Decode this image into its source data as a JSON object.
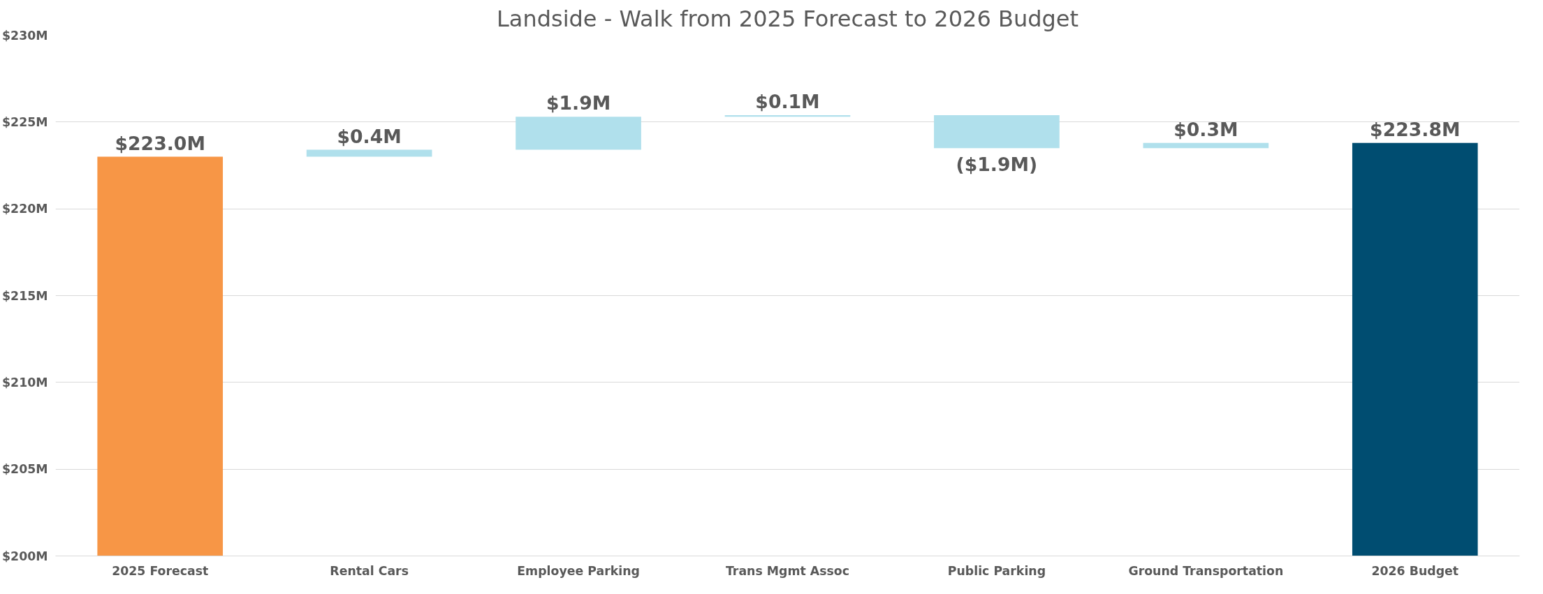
{
  "chart_data": {
    "type": "bar",
    "title": "Landside - Walk from 2025 Forecast to 2026 Budget",
    "categories": [
      "2025 Forecast",
      "Rental Cars",
      "Employee Parking",
      "Trans Mgmt Assoc",
      "Public Parking",
      "Ground Transportation",
      "2026 Budget"
    ],
    "values": [
      223.0,
      0.4,
      1.9,
      0.1,
      -1.9,
      0.3,
      223.8
    ],
    "base": [
      null,
      223.0,
      223.4,
      225.3,
      225.4,
      223.5,
      null
    ],
    "colors": [
      "#f79646",
      "#b0e0ec",
      "#b0e0ec",
      "#b0e0ec",
      "#b0e0ec",
      "#b0e0ec",
      "#004d71"
    ],
    "value_labels": [
      "$223.0M",
      "$0.4M",
      "$1.9M",
      "$0.1M",
      "($1.9M)",
      "$0.3M",
      "$223.8M"
    ],
    "ylim": [
      200,
      230
    ],
    "yticks": [
      {
        "value": 200,
        "label": "$200M"
      },
      {
        "value": 205,
        "label": "$205M"
      },
      {
        "value": 210,
        "label": "$210M"
      },
      {
        "value": 215,
        "label": "$215M"
      },
      {
        "value": 220,
        "label": "$220M"
      },
      {
        "value": 225,
        "label": "$225M"
      },
      {
        "value": 230,
        "label": "$230M"
      }
    ],
    "grid": "y"
  }
}
